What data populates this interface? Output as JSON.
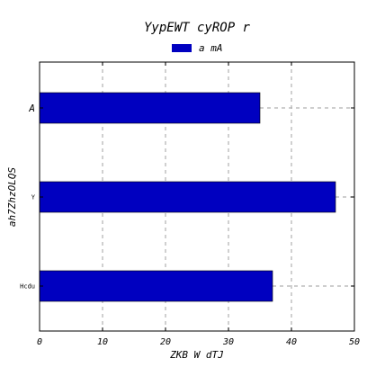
{
  "chart_data": {
    "type": "bar",
    "orientation": "horizontal",
    "title": "YypEWT cyROP r",
    "xlabel": "ZKB W dTJ",
    "ylabel": "ah7ZhzOLQS",
    "categories": [
      "Hcdu",
      "Y",
      "A"
    ],
    "series": [
      {
        "name": "a mA",
        "values": [
          37,
          47,
          35
        ],
        "color": "#0000c0"
      }
    ],
    "xlim": [
      0,
      50
    ],
    "xticks": [
      "0",
      "10",
      "20",
      "30",
      "40",
      "50"
    ],
    "grid": true,
    "legend_position": "top-center"
  }
}
